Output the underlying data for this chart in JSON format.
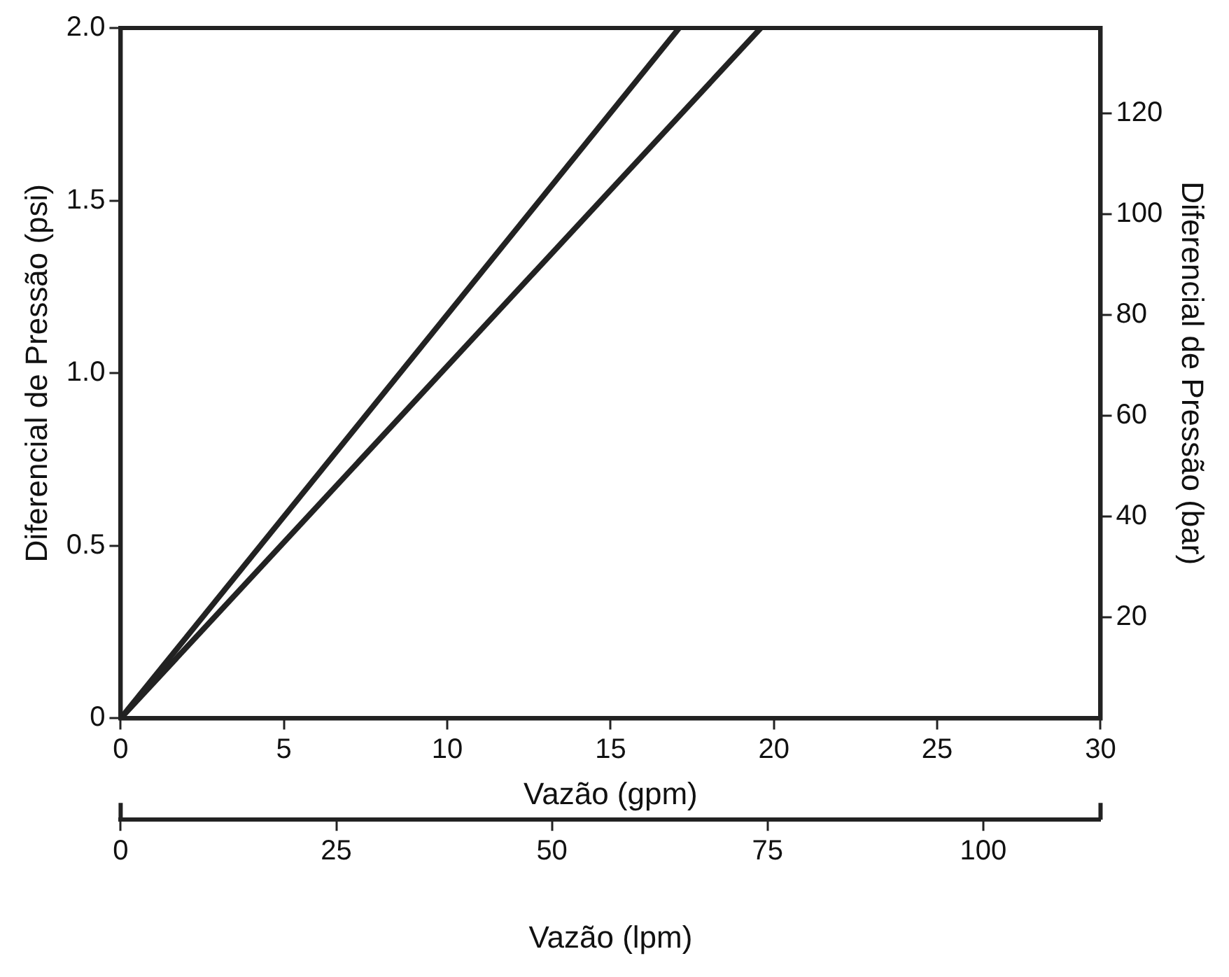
{
  "chart_data": {
    "type": "line",
    "xlabel": "Vazão (gpm)",
    "ylabel": "Diferencial de Pressão (psi)",
    "y2label": "Diferencial de Pressão (bar)",
    "x2label": "Vazão (lpm)",
    "xlim": [
      0,
      30
    ],
    "xticks": [
      0,
      5,
      10,
      15,
      20,
      25,
      30
    ],
    "ylim": [
      0,
      2
    ],
    "yticks": [
      0,
      0.5,
      {
        "value": 1,
        "label": "1.0"
      },
      1.5,
      {
        "value": 2,
        "label": "2.0"
      }
    ],
    "y2lim": [
      0,
      137
    ],
    "y2ticks": [
      20,
      40,
      60,
      80,
      100,
      120
    ],
    "x2lim": [
      0,
      113.6
    ],
    "x2ticks": [
      0,
      25,
      50,
      75,
      100
    ],
    "grid": false,
    "legend": false,
    "marker": "none",
    "line_style": "solid",
    "series": [
      {
        "color": "#222222",
        "x": [
          0,
          17.1
        ],
        "values": [
          0,
          2
        ]
      },
      {
        "color": "#222222",
        "x": [
          0,
          19.6
        ],
        "values": [
          0,
          2
        ]
      }
    ]
  }
}
